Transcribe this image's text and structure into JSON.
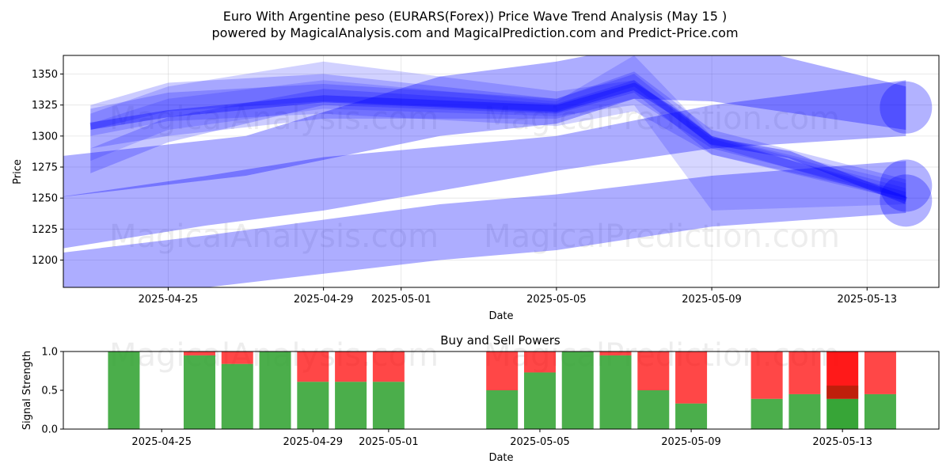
{
  "title_line1": "Euro With Argentine peso (EURARS(Forex)) Price Wave Trend Analysis (May 15 )",
  "title_line2": "powered by MagicalAnalysis.com and MagicalPrediction.com and Predict-Price.com",
  "watermarks": [
    "MagicalAnalysis.com",
    "MagicalPrediction.com"
  ],
  "colors": {
    "wave": "#0000ff",
    "buy": "#2ca02c",
    "sell": "#ff0000",
    "axis": "#000000",
    "grid": "#b0b0b0"
  },
  "chart_data": [
    {
      "type": "area",
      "title": "",
      "xlabel": "Date",
      "ylabel": "Price",
      "ylim": [
        1178,
        1365
      ],
      "xlim": [
        "2025-04-22",
        "2025-05-15"
      ],
      "grid": true,
      "x_ticks": [
        "2025-04-25",
        "2025-04-29",
        "2025-05-01",
        "2025-05-05",
        "2025-05-09",
        "2025-05-13"
      ],
      "y_ticks": [
        1200,
        1225,
        1250,
        1275,
        1300,
        1325,
        1350
      ],
      "series": [
        {
          "x": [
            "2025-04-23",
            "2025-04-25",
            "2025-04-29",
            "2025-05-05",
            "2025-05-07",
            "2025-05-09",
            "2025-05-14"
          ],
          "lower": [
            1300,
            1312,
            1318,
            1308,
            1320,
            1285,
            1248
          ],
          "upper": [
            1318,
            1340,
            1360,
            1336,
            1345,
            1300,
            1258
          ]
        },
        {
          "x": [
            "2025-04-23",
            "2025-04-25",
            "2025-04-29",
            "2025-05-05",
            "2025-05-07",
            "2025-05-09",
            "2025-05-14"
          ],
          "lower": [
            1290,
            1300,
            1314,
            1314,
            1330,
            1290,
            1250
          ],
          "upper": [
            1325,
            1343,
            1350,
            1330,
            1352,
            1305,
            1265
          ]
        },
        {
          "x": [
            "2025-04-23",
            "2025-04-25",
            "2025-04-29",
            "2025-05-05",
            "2025-05-07",
            "2025-05-09",
            "2025-05-14"
          ],
          "lower": [
            1280,
            1305,
            1322,
            1316,
            1325,
            1240,
            1245
          ],
          "upper": [
            1310,
            1330,
            1345,
            1328,
            1365,
            1300,
            1262
          ]
        },
        {
          "x": [
            "2025-04-23",
            "2025-04-25",
            "2025-04-29",
            "2025-05-05",
            "2025-05-07",
            "2025-05-09",
            "2025-05-14"
          ],
          "lower": [
            1270,
            1295,
            1325,
            1318,
            1335,
            1285,
            1250
          ],
          "upper": [
            1290,
            1315,
            1338,
            1326,
            1345,
            1298,
            1255
          ]
        },
        {
          "x": [
            "2025-04-23",
            "2025-04-25",
            "2025-04-29",
            "2025-05-05",
            "2025-05-07",
            "2025-05-09",
            "2025-05-14"
          ],
          "lower": [
            1305,
            1320,
            1328,
            1320,
            1340,
            1292,
            1247
          ],
          "upper": [
            1322,
            1335,
            1342,
            1330,
            1350,
            1300,
            1252
          ]
        },
        {
          "x": [
            "2025-04-22",
            "2025-04-27",
            "2025-05-02",
            "2025-05-05",
            "2025-05-07",
            "2025-05-09",
            "2025-05-14"
          ],
          "lower": [
            1250,
            1268,
            1300,
            1310,
            1330,
            1328,
            1305
          ],
          "upper": [
            1283,
            1300,
            1348,
            1360,
            1372,
            1378,
            1340
          ]
        },
        {
          "x": [
            "2025-04-22",
            "2025-04-26",
            "2025-04-29",
            "2025-05-05",
            "2025-05-09",
            "2025-05-14"
          ],
          "lower": [
            1208,
            1228,
            1240,
            1272,
            1290,
            1300
          ],
          "upper": [
            1250,
            1268,
            1283,
            1300,
            1325,
            1345
          ]
        },
        {
          "x": [
            "2025-04-22",
            "2025-04-26",
            "2025-05-02",
            "2025-05-05",
            "2025-05-09",
            "2025-05-14"
          ],
          "lower": [
            1170,
            1178,
            1200,
            1208,
            1227,
            1238
          ],
          "upper": [
            1205,
            1220,
            1245,
            1253,
            1268,
            1280
          ]
        }
      ],
      "center_line": {
        "x": [
          "2025-04-23",
          "2025-04-25",
          "2025-04-29",
          "2025-05-05",
          "2025-05-07",
          "2025-05-08",
          "2025-05-09",
          "2025-05-11",
          "2025-05-14"
        ],
        "y": [
          1308,
          1318,
          1330,
          1322,
          1340,
          1320,
          1296,
          1285,
          1248
        ]
      },
      "endpoint_markers": [
        {
          "x": "2025-05-14",
          "y": 1323
        },
        {
          "x": "2025-05-14",
          "y": 1260
        },
        {
          "x": "2025-05-14",
          "y": 1248
        }
      ]
    },
    {
      "type": "bar",
      "title": "Buy and Sell Powers",
      "xlabel": "Date",
      "ylabel": "Signal Strength",
      "ylim": [
        0,
        1
      ],
      "y_ticks": [
        "0.0",
        "0.5",
        "1.0"
      ],
      "x_ticks": [
        "2025-04-25",
        "2025-04-29",
        "2025-05-01",
        "2025-05-05",
        "2025-05-09",
        "2025-05-13"
      ],
      "grid": false,
      "categories": [
        "2025-04-24",
        "2025-04-26",
        "2025-04-27",
        "2025-04-28",
        "2025-04-29",
        "2025-04-30",
        "2025-05-01",
        "2025-05-04",
        "2025-05-05",
        "2025-05-06",
        "2025-05-07",
        "2025-05-08",
        "2025-05-09",
        "2025-05-11",
        "2025-05-12",
        "2025-05-13",
        "2025-05-14"
      ],
      "series": [
        {
          "name": "Buy",
          "values": [
            1.0,
            0.95,
            0.84,
            1.0,
            0.61,
            0.61,
            0.61,
            0.5,
            0.73,
            1.0,
            0.95,
            0.5,
            0.33,
            0.39,
            0.45,
            0.39,
            0.45
          ]
        },
        {
          "name": "Sell",
          "values": [
            0.0,
            0.05,
            0.16,
            0.0,
            0.39,
            0.39,
            0.39,
            0.5,
            0.27,
            0.0,
            0.05,
            0.5,
            0.67,
            0.61,
            0.55,
            0.61,
            0.55
          ]
        }
      ],
      "highlight_index": 15
    }
  ]
}
